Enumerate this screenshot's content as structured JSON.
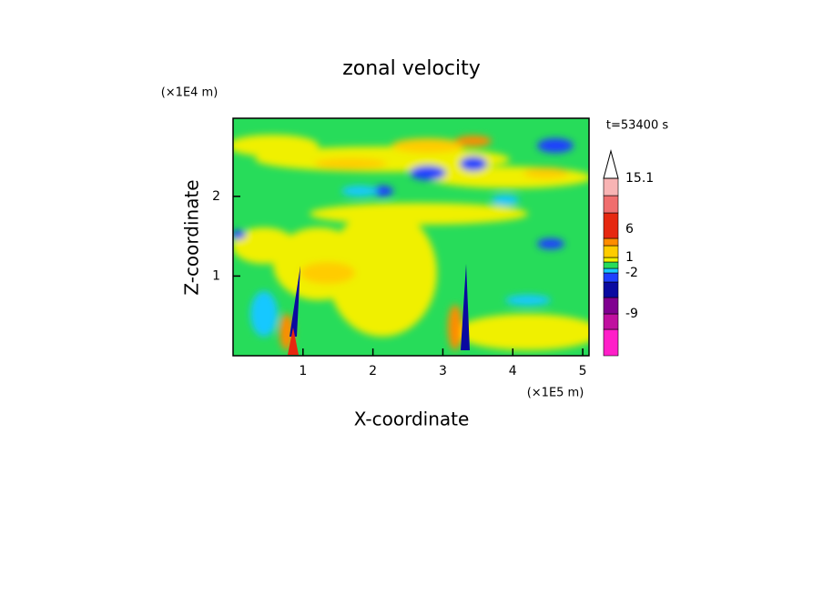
{
  "chart_data": {
    "type": "contour",
    "title": "zonal velocity",
    "xlabel": "X-coordinate",
    "ylabel": "Z-coordinate",
    "xunit": "(×1E5 m)",
    "yunit": "(×1E4 m)",
    "time_label": "t=53400 s",
    "xlim": [
      0,
      5.09
    ],
    "xticks": [
      1,
      2,
      3,
      4,
      5
    ],
    "ylim": [
      0,
      2.98
    ],
    "yticks": [
      1,
      2
    ],
    "colorbar": {
      "colors": [
        "#ff1fc8",
        "#c0109f",
        "#800090",
        "#0a0aa0",
        "#1e40ff",
        "#19c8ff",
        "#27dc5a",
        "#f0f000",
        "#ffcc00",
        "#ff8c00",
        "#e62810",
        "#f06e6e",
        "#f8b4b4"
      ],
      "ticks": [
        -9,
        -2,
        1,
        6,
        15.1
      ]
    }
  }
}
